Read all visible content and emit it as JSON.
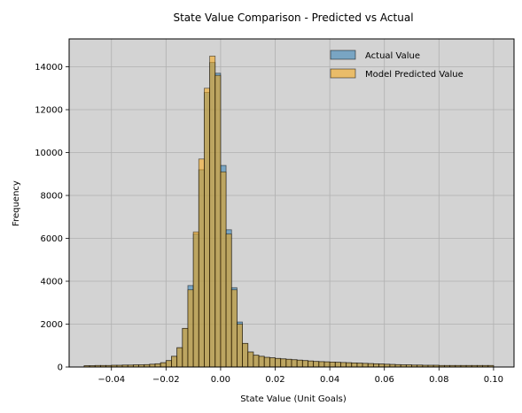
{
  "chart_data": {
    "type": "bar",
    "title": "State Value Comparison - Predicted vs Actual",
    "xlabel": "State Value (Unit Goals)",
    "ylabel": "Frequency",
    "xlim": [
      -0.0555,
      0.1075
    ],
    "ylim": [
      0,
      15300
    ],
    "xticks": [
      -0.04,
      -0.02,
      0.0,
      0.02,
      0.04,
      0.06,
      0.08,
      0.1
    ],
    "xtick_labels": [
      "−0.04",
      "−0.02",
      "0.00",
      "0.02",
      "0.04",
      "0.06",
      "0.08",
      "0.10"
    ],
    "yticks": [
      0,
      2000,
      4000,
      6000,
      8000,
      10000,
      12000,
      14000
    ],
    "ytick_labels": [
      "0",
      "2000",
      "4000",
      "6000",
      "8000",
      "10000",
      "12000",
      "14000"
    ],
    "grid": true,
    "legend_position": "upper right",
    "background_color": "#d3d3d3",
    "bin_start": -0.05,
    "bin_width": 0.002,
    "series": [
      {
        "name": "Actual Value",
        "color": "#1f77b4",
        "opacity": 0.5,
        "values": [
          60,
          60,
          70,
          70,
          70,
          80,
          80,
          90,
          90,
          100,
          100,
          110,
          130,
          150,
          200,
          300,
          500,
          900,
          1800,
          3800,
          6200,
          9200,
          12800,
          14200,
          13700,
          9400,
          6400,
          3700,
          2100,
          1100,
          700,
          550,
          500,
          450,
          430,
          400,
          380,
          360,
          340,
          320,
          300,
          280,
          260,
          250,
          240,
          230,
          220,
          210,
          200,
          190,
          180,
          170,
          160,
          150,
          140,
          130,
          120,
          110,
          100,
          100,
          90,
          90,
          80,
          80,
          80,
          70,
          70,
          70,
          70,
          70,
          70,
          70,
          70,
          70,
          70
        ]
      },
      {
        "name": "Model Predicted Value",
        "color": "#ffa500",
        "opacity": 0.5,
        "values": [
          60,
          60,
          70,
          70,
          70,
          80,
          80,
          90,
          90,
          100,
          100,
          110,
          130,
          150,
          200,
          300,
          500,
          900,
          1800,
          3600,
          6300,
          9700,
          13000,
          14500,
          13600,
          9100,
          6200,
          3600,
          2000,
          1100,
          700,
          550,
          500,
          450,
          430,
          400,
          380,
          360,
          340,
          320,
          300,
          280,
          260,
          250,
          240,
          230,
          220,
          210,
          200,
          190,
          180,
          170,
          160,
          150,
          140,
          130,
          120,
          110,
          100,
          100,
          90,
          90,
          80,
          80,
          80,
          70,
          70,
          70,
          70,
          70,
          70,
          70,
          70,
          70,
          70
        ]
      }
    ]
  }
}
